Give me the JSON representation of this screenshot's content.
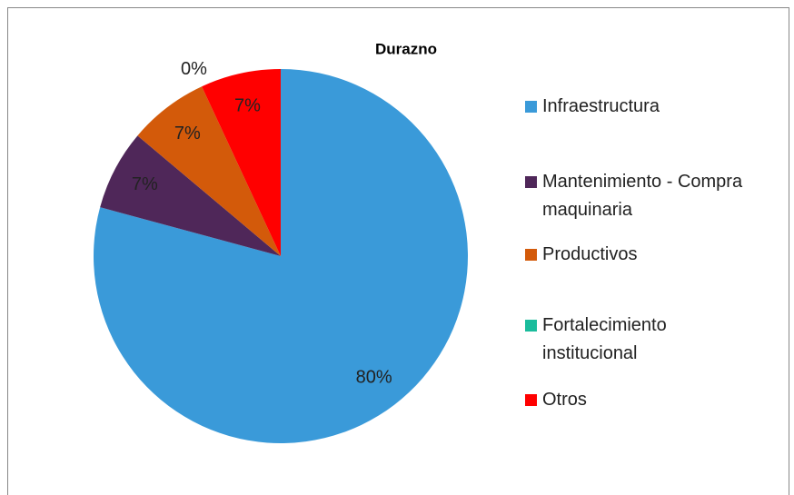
{
  "chart_data": {
    "type": "pie",
    "title": "Durazno",
    "categories": [
      "Infraestructura",
      "Mantenimiento - Compra maquinaria",
      "Productivos",
      "Fortalecimiento institucional",
      "Otros"
    ],
    "values": [
      80,
      7,
      7,
      0,
      7
    ],
    "value_labels": [
      "80%",
      "7%",
      "7%",
      "0%",
      "7%"
    ],
    "colors": [
      "#3a9ad9",
      "#4f2759",
      "#d35a0a",
      "#1abc9c",
      "#ff0000"
    ]
  }
}
